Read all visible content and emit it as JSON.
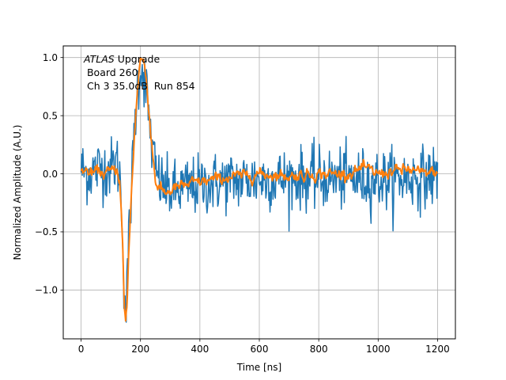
{
  "chart_data": {
    "type": "line",
    "title": "",
    "xlabel": "Time [ns]",
    "ylabel": "Normalized Amplitude (A.U.)",
    "xlim": [
      -60,
      1260
    ],
    "ylim": [
      -1.42,
      1.1
    ],
    "xticks": [
      0,
      200,
      400,
      600,
      800,
      1000,
      1200
    ],
    "yticks": [
      -1.0,
      -0.5,
      0.0,
      0.5,
      1.0
    ],
    "xtick_labels": [
      "0",
      "200",
      "400",
      "600",
      "800",
      "1000",
      "1200"
    ],
    "ytick_labels": [
      "−1.0",
      "−0.5",
      "0.0",
      "0.5",
      "1.0"
    ],
    "grid": true,
    "legend": "none",
    "annotation": {
      "line1_italic": "ATLAS",
      "line1_rest": " Upgrade",
      "line2": " Board 260",
      "line3": " Ch 3 35.0dB  Run 854"
    },
    "series": [
      {
        "color": "#1f77b4",
        "noise": "high",
        "x": [
          0,
          20,
          40,
          60,
          80,
          100,
          120,
          130,
          140,
          145,
          150,
          155,
          160,
          170,
          180,
          190,
          200,
          210,
          220,
          230,
          240,
          250,
          260,
          280,
          300,
          320,
          350,
          400,
          450,
          500,
          600,
          700,
          800,
          900,
          950,
          1000,
          1050,
          1100,
          1150,
          1200
        ],
        "y": [
          0.05,
          0.0,
          0.02,
          0.05,
          0.05,
          0.05,
          0.1,
          0.0,
          -0.5,
          -1.0,
          -1.2,
          -1.0,
          -0.6,
          -0.1,
          0.4,
          0.75,
          0.92,
          0.88,
          0.7,
          0.45,
          0.2,
          0.05,
          -0.05,
          -0.12,
          -0.15,
          -0.15,
          -0.12,
          -0.1,
          -0.08,
          -0.06,
          -0.05,
          -0.04,
          -0.04,
          -0.04,
          -0.05,
          -0.05,
          -0.05,
          -0.04,
          -0.03,
          -0.02
        ]
      },
      {
        "color": "#ff7f0e",
        "noise": "low",
        "x": [
          0,
          20,
          40,
          60,
          80,
          100,
          120,
          130,
          140,
          145,
          150,
          155,
          160,
          170,
          180,
          190,
          200,
          210,
          220,
          230,
          240,
          250,
          260,
          280,
          300,
          320,
          350,
          400,
          450,
          500,
          600,
          700,
          800,
          900,
          950,
          1000,
          1050,
          1100,
          1150,
          1200
        ],
        "y": [
          0.04,
          0.02,
          0.0,
          0.03,
          0.0,
          0.02,
          0.05,
          -0.05,
          -0.6,
          -1.15,
          -1.3,
          -1.1,
          -0.7,
          -0.15,
          0.35,
          0.75,
          1.0,
          0.97,
          0.8,
          0.5,
          0.2,
          -0.05,
          -0.12,
          -0.16,
          -0.15,
          -0.12,
          -0.1,
          -0.07,
          -0.05,
          -0.03,
          0.0,
          -0.02,
          0.0,
          0.0,
          0.05,
          0.0,
          0.02,
          0.04,
          0.0,
          0.02
        ]
      }
    ]
  }
}
